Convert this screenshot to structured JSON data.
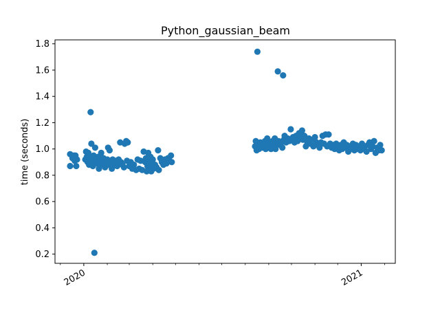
{
  "chart_data": {
    "type": "scatter",
    "title": "Python_gaussian_beam",
    "xlabel": "",
    "ylabel": "time (seconds)",
    "ylim": [
      0.13,
      1.83
    ],
    "xlim": [
      "2019-11-24",
      "2021-02-15"
    ],
    "grid": false,
    "y_ticks": [
      0.2,
      0.4,
      0.6,
      0.8,
      1.0,
      1.2,
      1.4,
      1.6,
      1.8
    ],
    "y_tick_labels": [
      "0.2",
      "0.4",
      "0.6",
      "0.8",
      "1.0",
      "1.2",
      "1.4",
      "1.6",
      "1.8"
    ],
    "x_ticks": [
      "2020-01-01",
      "2021-01-01"
    ],
    "x_tick_labels": [
      "2020",
      "2021"
    ],
    "x_minor_ticks": [
      "2019-12-01",
      "2020-02-01",
      "2020-03-01",
      "2020-04-01",
      "2020-05-01",
      "2020-06-01",
      "2020-07-01",
      "2020-08-01",
      "2020-09-01",
      "2020-10-01",
      "2020-11-01",
      "2020-12-01",
      "2021-02-01"
    ],
    "marker_color": "#1f77b4",
    "points": [
      [
        "2019-12-14",
        0.96
      ],
      [
        "2019-12-14",
        0.87
      ],
      [
        "2019-12-17",
        0.93
      ],
      [
        "2019-12-19",
        0.95
      ],
      [
        "2019-12-20",
        0.91
      ],
      [
        "2019-12-21",
        0.95
      ],
      [
        "2019-12-22",
        0.87
      ],
      [
        "2019-12-23",
        0.92
      ],
      [
        "2020-01-03",
        0.92
      ],
      [
        "2020-01-04",
        0.98
      ],
      [
        "2020-01-05",
        0.94
      ],
      [
        "2020-01-06",
        0.9
      ],
      [
        "2020-01-07",
        0.97
      ],
      [
        "2020-01-08",
        0.88
      ],
      [
        "2020-01-09",
        0.93
      ],
      [
        "2020-01-10",
        1.28
      ],
      [
        "2020-01-11",
        1.04
      ],
      [
        "2020-01-12",
        0.91
      ],
      [
        "2020-01-13",
        0.87
      ],
      [
        "2020-01-14",
        0.95
      ],
      [
        "2020-01-15",
        0.21
      ],
      [
        "2020-01-16",
        1.01
      ],
      [
        "2020-01-17",
        0.89
      ],
      [
        "2020-01-18",
        0.93
      ],
      [
        "2020-01-19",
        0.9
      ],
      [
        "2020-01-20",
        0.94
      ],
      [
        "2020-01-21",
        0.85
      ],
      [
        "2020-01-22",
        0.92
      ],
      [
        "2020-01-23",
        0.88
      ],
      [
        "2020-01-24",
        0.97
      ],
      [
        "2020-01-25",
        0.91
      ],
      [
        "2020-01-26",
        0.89
      ],
      [
        "2020-01-27",
        0.93
      ],
      [
        "2020-01-29",
        0.86
      ],
      [
        "2020-01-30",
        0.9
      ],
      [
        "2020-02-01",
        0.92
      ],
      [
        "2020-02-02",
        1.01
      ],
      [
        "2020-02-03",
        0.88
      ],
      [
        "2020-02-04",
        0.99
      ],
      [
        "2020-02-05",
        0.91
      ],
      [
        "2020-02-07",
        0.85
      ],
      [
        "2020-02-08",
        0.92
      ],
      [
        "2020-02-10",
        0.89
      ],
      [
        "2020-02-12",
        0.91
      ],
      [
        "2020-02-14",
        0.87
      ],
      [
        "2020-02-16",
        0.92
      ],
      [
        "2020-02-18",
        1.05
      ],
      [
        "2020-02-19",
        0.9
      ],
      [
        "2020-02-21",
        0.88
      ],
      [
        "2020-02-23",
        0.86
      ],
      [
        "2020-02-24",
        1.04
      ],
      [
        "2020-02-26",
        1.06
      ],
      [
        "2020-02-27",
        0.91
      ],
      [
        "2020-02-28",
        1.05
      ],
      [
        "2020-03-01",
        0.87
      ],
      [
        "2020-03-03",
        0.9
      ],
      [
        "2020-03-05",
        0.85
      ],
      [
        "2020-03-07",
        0.88
      ],
      [
        "2020-03-10",
        0.84
      ],
      [
        "2020-03-12",
        0.92
      ],
      [
        "2020-03-14",
        0.85
      ],
      [
        "2020-03-16",
        0.91
      ],
      [
        "2020-03-18",
        0.84
      ],
      [
        "2020-03-20",
        0.98
      ],
      [
        "2020-03-22",
        0.9
      ],
      [
        "2020-03-23",
        0.93
      ],
      [
        "2020-03-24",
        0.83
      ],
      [
        "2020-03-25",
        0.87
      ],
      [
        "2020-03-26",
        0.97
      ],
      [
        "2020-03-27",
        0.91
      ],
      [
        "2020-03-28",
        0.86
      ],
      [
        "2020-03-29",
        0.94
      ],
      [
        "2020-03-30",
        0.83
      ],
      [
        "2020-03-31",
        0.89
      ],
      [
        "2020-04-01",
        0.92
      ],
      [
        "2020-04-02",
        0.85
      ],
      [
        "2020-04-04",
        0.88
      ],
      [
        "2020-04-06",
        0.86
      ],
      [
        "2020-04-08",
        0.99
      ],
      [
        "2020-04-09",
        0.84
      ],
      [
        "2020-04-11",
        0.93
      ],
      [
        "2020-04-13",
        0.9
      ],
      [
        "2020-04-15",
        0.88
      ],
      [
        "2020-04-17",
        0.92
      ],
      [
        "2020-04-19",
        0.89
      ],
      [
        "2020-04-21",
        0.93
      ],
      [
        "2020-04-23",
        0.91
      ],
      [
        "2020-04-25",
        0.95
      ],
      [
        "2020-04-26",
        0.9
      ],
      [
        "2020-08-14",
        1.02
      ],
      [
        "2020-08-15",
        1.06
      ],
      [
        "2020-08-16",
        0.99
      ],
      [
        "2020-08-17",
        1.74
      ],
      [
        "2020-08-18",
        1.04
      ],
      [
        "2020-08-19",
        1.0
      ],
      [
        "2020-08-21",
        1.05
      ],
      [
        "2020-08-23",
        1.01
      ],
      [
        "2020-08-25",
        1.03
      ],
      [
        "2020-08-27",
        1.06
      ],
      [
        "2020-08-28",
        1.0
      ],
      [
        "2020-08-30",
        1.08
      ],
      [
        "2020-09-01",
        1.02
      ],
      [
        "2020-09-02",
        1.04
      ],
      [
        "2020-09-04",
        1.0
      ],
      [
        "2020-09-06",
        1.06
      ],
      [
        "2020-09-08",
        1.02
      ],
      [
        "2020-09-09",
        1.08
      ],
      [
        "2020-09-10",
        1.0
      ],
      [
        "2020-09-12",
        1.04
      ],
      [
        "2020-09-13",
        1.59
      ],
      [
        "2020-09-14",
        1.06
      ],
      [
        "2020-09-16",
        1.03
      ],
      [
        "2020-09-18",
        1.05
      ],
      [
        "2020-09-19",
        1.01
      ],
      [
        "2020-09-20",
        1.56
      ],
      [
        "2020-09-21",
        1.07
      ],
      [
        "2020-09-22",
        1.1
      ],
      [
        "2020-09-24",
        1.05
      ],
      [
        "2020-09-26",
        1.08
      ],
      [
        "2020-09-28",
        1.06
      ],
      [
        "2020-09-30",
        1.15
      ],
      [
        "2020-10-01",
        1.07
      ],
      [
        "2020-10-03",
        1.09
      ],
      [
        "2020-10-05",
        1.05
      ],
      [
        "2020-10-07",
        1.1
      ],
      [
        "2020-10-09",
        1.06
      ],
      [
        "2020-10-11",
        1.12
      ],
      [
        "2020-10-13",
        1.08
      ],
      [
        "2020-10-15",
        1.14
      ],
      [
        "2020-10-16",
        1.07
      ],
      [
        "2020-10-18",
        1.1
      ],
      [
        "2020-10-20",
        1.02
      ],
      [
        "2020-10-22",
        1.05
      ],
      [
        "2020-10-24",
        1.08
      ],
      [
        "2020-10-26",
        1.04
      ],
      [
        "2020-10-28",
        1.07
      ],
      [
        "2020-10-30",
        1.02
      ],
      [
        "2020-11-01",
        1.09
      ],
      [
        "2020-11-03",
        1.05
      ],
      [
        "2020-11-05",
        1.03
      ],
      [
        "2020-11-07",
        1.01
      ],
      [
        "2020-11-09",
        1.05
      ],
      [
        "2020-11-11",
        1.1
      ],
      [
        "2020-11-13",
        1.04
      ],
      [
        "2020-11-15",
        1.11
      ],
      [
        "2020-11-17",
        1.02
      ],
      [
        "2020-11-19",
        1.11
      ],
      [
        "2020-11-21",
        1.04
      ],
      [
        "2020-11-23",
        1.01
      ],
      [
        "2020-11-25",
        1.03
      ],
      [
        "2020-11-27",
        1.0
      ],
      [
        "2020-11-29",
        1.04
      ],
      [
        "2020-12-01",
        1.02
      ],
      [
        "2020-12-03",
        0.99
      ],
      [
        "2020-12-05",
        1.03
      ],
      [
        "2020-12-07",
        1.0
      ],
      [
        "2020-12-09",
        1.05
      ],
      [
        "2020-12-11",
        1.01
      ],
      [
        "2020-12-13",
        1.03
      ],
      [
        "2020-12-15",
        0.98
      ],
      [
        "2020-12-17",
        1.02
      ],
      [
        "2020-12-19",
        1.0
      ],
      [
        "2020-12-21",
        1.04
      ],
      [
        "2020-12-23",
        0.99
      ],
      [
        "2020-12-25",
        1.03
      ],
      [
        "2020-12-27",
        1.0
      ],
      [
        "2020-12-29",
        1.02
      ],
      [
        "2020-12-31",
        0.99
      ],
      [
        "2021-01-02",
        1.04
      ],
      [
        "2021-01-04",
        1.0
      ],
      [
        "2021-01-06",
        1.02
      ],
      [
        "2021-01-08",
        0.98
      ],
      [
        "2021-01-10",
        1.03
      ],
      [
        "2021-01-12",
        1.05
      ],
      [
        "2021-01-14",
        1.0
      ],
      [
        "2021-01-16",
        1.02
      ],
      [
        "2021-01-18",
        1.06
      ],
      [
        "2021-01-20",
        0.97
      ],
      [
        "2021-01-22",
        1.01
      ],
      [
        "2021-01-24",
        0.99
      ],
      [
        "2021-01-26",
        1.03
      ],
      [
        "2021-01-28",
        0.99
      ]
    ]
  }
}
